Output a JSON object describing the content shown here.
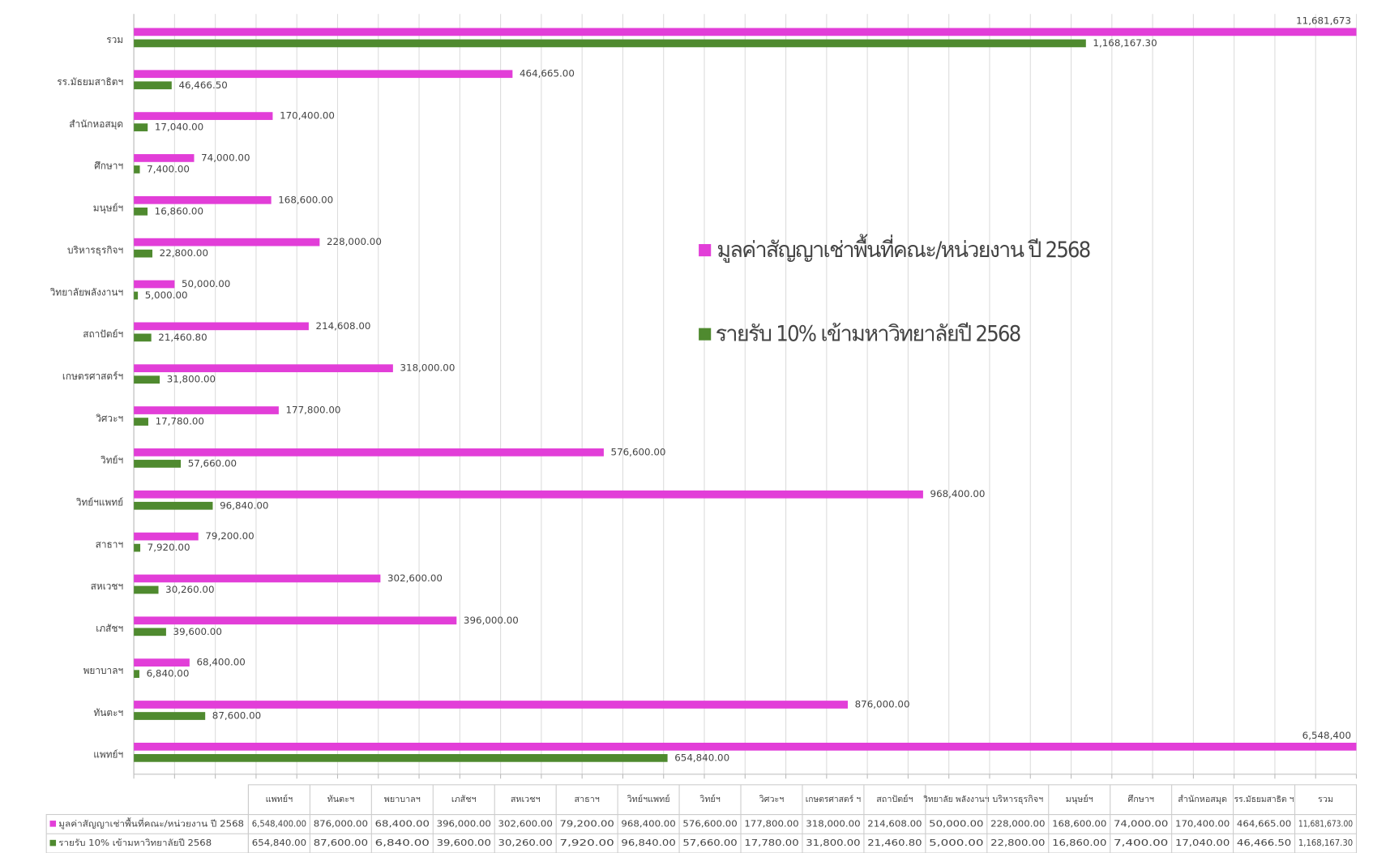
{
  "chart_data": {
    "type": "bar",
    "orientation": "horizontal",
    "categories": [
      "แพทย์ฯ",
      "ทันตะฯ",
      "พยาบาลฯ",
      "เภสัชฯ",
      "สหเวชฯ",
      "สาธาฯ",
      "วิทย์ฯแพทย์",
      "วิทย์ฯ",
      "วิศวะฯ",
      "เกษตรศาสตร์ฯ",
      "สถาปัตย์ฯ",
      "วิทยาลัยพลังงานฯ",
      "บริหารธุรกิจฯ",
      "มนุษย์ฯ",
      "ศึกษาฯ",
      "สำนักหอสมุด",
      "รร.มัธยมสาธิตฯ",
      "รวม"
    ],
    "series": [
      {
        "name": "มูลค่าสัญญาเช่าพื้นที่คณะ/หน่วยงาน ปี 2568",
        "color": "#e23ed8",
        "values": [
          6548400,
          876000,
          68400,
          396000,
          302600,
          79200,
          968400,
          576600,
          177800,
          318000,
          214608,
          50000,
          228000,
          168600,
          74000,
          170400,
          464665,
          11681673
        ],
        "value_labels": [
          "6,548,400",
          "876,000.00",
          "68,400.00",
          "396,000.00",
          "302,600.00",
          "79,200.00",
          "968,400.00",
          "576,600.00",
          "177,800.00",
          "318,000.00",
          "214,608.00",
          "50,000.00",
          "228,000.00",
          "168,600.00",
          "74,000.00",
          "170,400.00",
          "464,665.00",
          "11,681,673"
        ]
      },
      {
        "name": "รายรับ 10% เข้ามหาวิทยาลัยปี 2568",
        "color": "#4f8a2f",
        "values": [
          654840,
          87600,
          6840,
          39600,
          30260,
          7920,
          96840,
          57660,
          17780,
          31800,
          21460.8,
          5000,
          22800,
          16860,
          7400,
          17040,
          46466.5,
          1168167.3
        ],
        "value_labels": [
          "654,840.00",
          "87,600.00",
          "6,840.00",
          "39,600.00",
          "30,260.00",
          "7,920.00",
          "96,840.00",
          "57,660.00",
          "17,780.00",
          "31,800.00",
          "21,460.80",
          "5,000.00",
          "22,800.00",
          "16,860.00",
          "7,400.00",
          "17,040.00",
          "46,466.50",
          "1,168,167.30"
        ]
      }
    ],
    "xlim": [
      0,
      1500000
    ],
    "xticks": [
      0,
      50000,
      100000,
      150000,
      200000,
      250000,
      300000,
      350000,
      400000,
      450000,
      500000,
      550000,
      600000,
      650000,
      700000,
      750000,
      800000,
      850000,
      900000,
      950000,
      1000000,
      1050000,
      1100000,
      1150000,
      1200000,
      1250000,
      1300000,
      1350000,
      1400000,
      1450000,
      1500000
    ],
    "grid": true
  },
  "table": {
    "columns": [
      "แพทย์ฯ",
      "ทันตะฯ",
      "พยาบาลฯ",
      "เภสัชฯ",
      "สหเวชฯ",
      "สาธาฯ",
      "วิทย์ฯแพทย์",
      "วิทย์ฯ",
      "วิศวะฯ",
      "เกษตรศาสตร์ ฯ",
      "สถาปัตย์ฯ",
      "วิทยาลัย พลังงานฯ",
      "บริหารธุรกิจฯ",
      "มนุษย์ฯ",
      "ศึกษาฯ",
      "สำนักหอสมุด",
      "รร.มัธยมสาธิต ฯ",
      "รวม"
    ],
    "rows": [
      [
        "6,548,400.00",
        "876,000.00",
        "68,400.00",
        "396,000.00",
        "302,600.00",
        "79,200.00",
        "968,400.00",
        "576,600.00",
        "177,800.00",
        "318,000.00",
        "214,608.00",
        "50,000.00",
        "228,000.00",
        "168,600.00",
        "74,000.00",
        "170,400.00",
        "464,665.00",
        "11,681,673.00"
      ],
      [
        "654,840.00",
        "87,600.00",
        "6,840.00",
        "39,600.00",
        "30,260.00",
        "7,920.00",
        "96,840.00",
        "57,660.00",
        "17,780.00",
        "31,800.00",
        "21,460.80",
        "5,000.00",
        "22,800.00",
        "16,860.00",
        "7,400.00",
        "17,040.00",
        "46,466.50",
        "1,168,167.30"
      ]
    ]
  }
}
